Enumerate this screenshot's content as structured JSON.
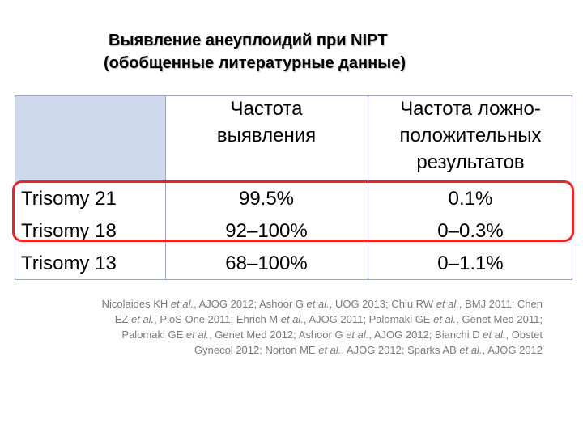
{
  "title": {
    "line1": "Выявление анеуплоидий  при NIPT",
    "line2": "(обобщенные литературные данные)"
  },
  "table": {
    "headers": {
      "detection": [
        "Частота",
        "выявления"
      ],
      "false_positive": [
        "Частота ложно-",
        "положительных",
        "результатов"
      ]
    },
    "rows": [
      {
        "name": "Trisomy 21",
        "detection": "99.5%",
        "false_positive": "0.1%"
      },
      {
        "name": "Trisomy 18",
        "detection": "92–100%",
        "false_positive": "0–0.3%"
      },
      {
        "name": "Trisomy 13",
        "detection": "68–100%",
        "false_positive": "0–1.1%"
      }
    ]
  },
  "references": [
    [
      "Nicolaides KH ",
      "et al.",
      ", AJOG 2012; Ashoor G ",
      "et al.",
      ", UOG 2013; Chiu RW ",
      "et al.",
      ", BMJ 2011; Chen"
    ],
    [
      "EZ ",
      "et al.",
      ", PloS One 2011; Ehrich M ",
      "et al.",
      ", AJOG 2011; Palomaki GE ",
      "et al.",
      ", Genet Med 2011;"
    ],
    [
      "Palomaki GE ",
      "et al.",
      ", Genet Med 2012; Ashoor G ",
      "et al.",
      ", AJOG 2012; Bianchi D ",
      "et al.",
      ", Obstet"
    ],
    [
      "Gynecol 2012; Norton ME ",
      "et al.",
      ", AJOG 2012; Sparks AB ",
      "et al.",
      ", AJOG 2012"
    ]
  ],
  "colors": {
    "highlight": "#e8262a",
    "header_corner": "#cfd9ee",
    "references_text": "#7a7a7a"
  }
}
